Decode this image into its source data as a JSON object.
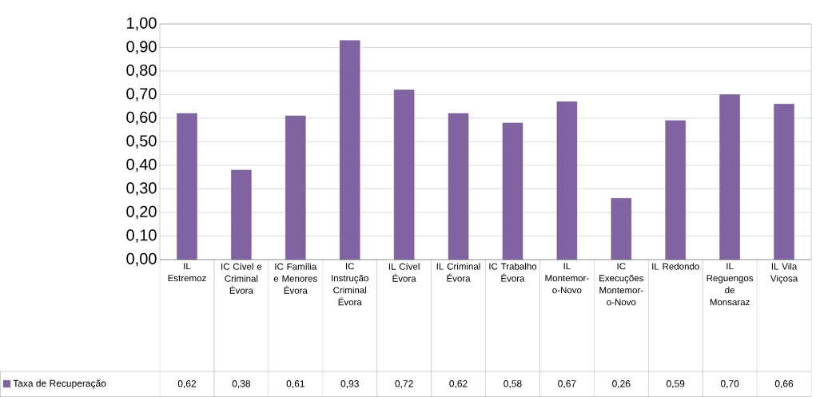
{
  "chart_data": {
    "type": "bar",
    "categories": [
      "IL Estremoz",
      "IC Cível e Criminal Évora",
      "IC Família e Menores Évora",
      "IC Instrução Criminal Évora",
      "IL Cível Évora",
      "IL Criminal Évora",
      "IC Trabalho Évora",
      "IL Montemor-o-Novo",
      "IC Execuções Montemor-o-Novo",
      "IL Redondo",
      "IL Reguengos de Monsaraz",
      "IL Vila Viçosa"
    ],
    "series": [
      {
        "name": "Taxa de Recuperação",
        "color": "#8064a2",
        "values": [
          0.62,
          0.38,
          0.61,
          0.93,
          0.72,
          0.62,
          0.58,
          0.67,
          0.26,
          0.59,
          0.7,
          0.66
        ],
        "value_labels": [
          "0,62",
          "0,38",
          "0,61",
          "0,93",
          "0,72",
          "0,62",
          "0,58",
          "0,67",
          "0,26",
          "0,59",
          "0,70",
          "0,66"
        ]
      }
    ],
    "ylim": [
      0,
      1
    ],
    "yticks": [
      {
        "value": 0,
        "label": "0,00"
      },
      {
        "value": 0.1,
        "label": "0,10"
      },
      {
        "value": 0.2,
        "label": "0,20"
      },
      {
        "value": 0.3,
        "label": "0,30"
      },
      {
        "value": 0.4,
        "label": "0,40"
      },
      {
        "value": 0.5,
        "label": "0,50"
      },
      {
        "value": 0.6,
        "label": "0,60"
      },
      {
        "value": 0.7,
        "label": "0,70"
      },
      {
        "value": 0.8,
        "label": "0,80"
      },
      {
        "value": 0.9,
        "label": "0,90"
      },
      {
        "value": 1,
        "label": "1,00"
      }
    ],
    "grid": "y",
    "legend": "bottom left"
  }
}
